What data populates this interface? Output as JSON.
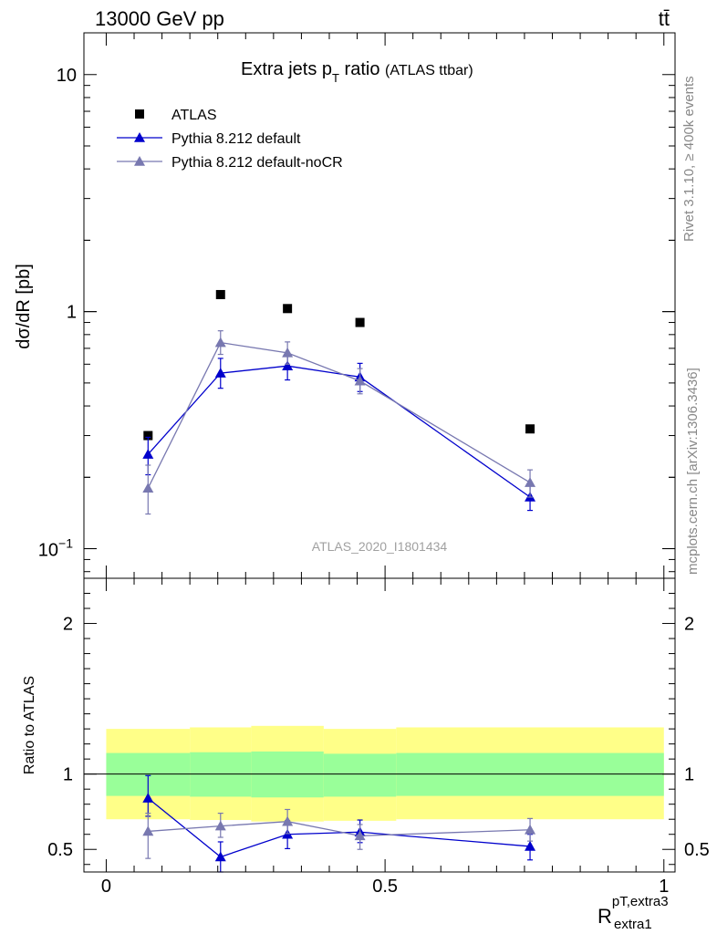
{
  "header": {
    "energy_label": "13000 GeV pp",
    "process_label": "tt̄"
  },
  "side": {
    "rivet_label": "Rivet 3.1.10, ≥ 400k events",
    "mcplots_label": "mcplots.cern.ch [arXiv:1306.3436]"
  },
  "chart_data": [
    {
      "type": "scatter",
      "panel": "main",
      "title": "Extra jets p",
      "title_sub": "T",
      "title_rest": " ratio",
      "title_note": "(ATLAS ttbar)",
      "ylabel": "dσ/dR [pb]",
      "y_scale": "log",
      "ylim": [
        0.075,
        15
      ],
      "xlim": [
        -0.04,
        1.02
      ],
      "y_ticks": [
        {
          "value": 0.1,
          "base": "10",
          "exp": "−1"
        },
        {
          "value": 1,
          "label": "1"
        },
        {
          "value": 10,
          "label": "10"
        }
      ],
      "analysis_label": "ATLAS_2020_I1801434",
      "legend_position": "top-left",
      "x": [
        0.075,
        0.205,
        0.325,
        0.455,
        0.76
      ],
      "xerr": [
        0.075,
        0.055,
        0.065,
        0.065,
        0.24
      ],
      "series": [
        {
          "name": "ATLAS",
          "marker": "square",
          "color": "#000000",
          "line": false,
          "values": [
            0.3,
            1.18,
            1.03,
            0.9,
            0.32
          ]
        },
        {
          "name": "Pythia 8.212 default",
          "marker": "triangle",
          "color": "#0000cc",
          "line": true,
          "values": [
            0.25,
            0.55,
            0.59,
            0.53,
            0.165
          ],
          "err_low": [
            0.045,
            0.075,
            0.075,
            0.07,
            0.02
          ],
          "err_high": [
            0.045,
            0.085,
            0.075,
            0.075,
            0.02
          ]
        },
        {
          "name": "Pythia 8.212 default-noCR",
          "marker": "triangle",
          "color": "#7878b0",
          "line": true,
          "values": [
            0.18,
            0.74,
            0.67,
            0.51,
            0.19
          ],
          "err_low": [
            0.04,
            0.08,
            0.07,
            0.06,
            0.025
          ],
          "err_high": [
            0.045,
            0.09,
            0.075,
            0.065,
            0.025
          ]
        }
      ]
    },
    {
      "type": "scatter",
      "panel": "ratio",
      "ylabel": "Ratio to ATLAS",
      "xlabel": "R",
      "xlabel_sup": "pT,extra3",
      "xlabel_sub": "extra1",
      "ylim": [
        0.35,
        2.3
      ],
      "xlim": [
        -0.04,
        1.02
      ],
      "x_ticks": [
        {
          "value": 0,
          "label": "0"
        },
        {
          "value": 0.5,
          "label": "0.5"
        },
        {
          "value": 1,
          "label": "1"
        }
      ],
      "y_ticks": [
        {
          "value": 0.5,
          "label": "0.5"
        },
        {
          "value": 1,
          "label": "1"
        },
        {
          "value": 2,
          "label": "2"
        }
      ],
      "bands": {
        "bin_edges": [
          0.0,
          0.15,
          0.26,
          0.39,
          0.52,
          1.0
        ],
        "yellow_low": [
          0.7,
          0.695,
          0.685,
          0.69,
          0.7
        ],
        "yellow_high": [
          1.3,
          1.31,
          1.32,
          1.3,
          1.31
        ],
        "green_low": [
          0.855,
          0.85,
          0.845,
          0.85,
          0.855
        ],
        "green_high": [
          1.14,
          1.145,
          1.15,
          1.135,
          1.14
        ],
        "yellow_color": "#ffff88",
        "green_color": "#99ff99"
      },
      "series": [
        {
          "name": "Pythia 8.212 default",
          "color": "#0000cc",
          "values": [
            0.84,
            0.45,
            0.6,
            0.615,
            0.52
          ],
          "err_low": [
            0.12,
            0.1,
            0.095,
            0.07,
            0.09
          ],
          "err_high": [
            0.15,
            0.1,
            0.09,
            0.08,
            0.08
          ]
        },
        {
          "name": "Pythia 8.212 default-noCR",
          "color": "#7878b0",
          "values": [
            0.62,
            0.655,
            0.685,
            0.59,
            0.63
          ],
          "err_low": [
            0.18,
            0.075,
            0.08,
            0.09,
            0.075
          ],
          "err_high": [
            0.12,
            0.085,
            0.08,
            0.075,
            0.075
          ]
        }
      ]
    }
  ]
}
